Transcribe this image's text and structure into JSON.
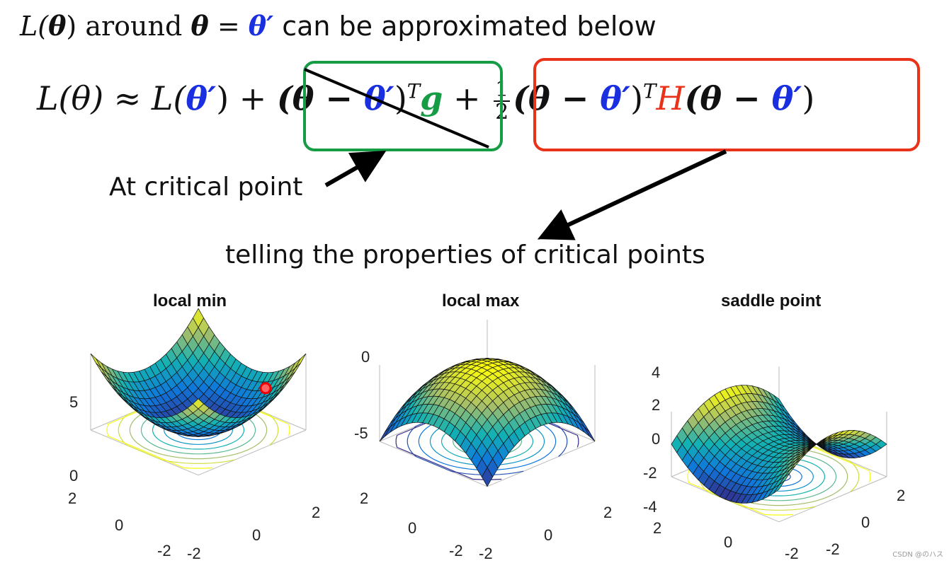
{
  "header": {
    "line": {
      "part1": "L(",
      "theta1": "θ",
      "part2": ") around ",
      "theta2": "θ",
      "eq": " = ",
      "theta_prime": "θ′",
      "part3": " can be approximated below"
    }
  },
  "formula": {
    "lhs": "L(θ) ≈ L(",
    "lhs_prime": "θ′",
    "close": ") + ",
    "term1_open": "(θ − ",
    "term1_prime": "θ′",
    "term1_close": ")",
    "term1_sup": "T",
    "term1_g": "g",
    "plus": " + ",
    "frac_num": "1",
    "frac_den": "2",
    "term2_open": "(θ − ",
    "term2_prime": "θ′",
    "term2_close": ")",
    "term2_sup": "T",
    "term2_H": "H",
    "term2_open2": "(θ − ",
    "term2_prime2": "θ′",
    "term2_close2": ")"
  },
  "annotations": {
    "critical": "At critical point",
    "properties": "telling the properties of critical points"
  },
  "plots": [
    {
      "title": "local min",
      "z_ticks": [
        "5",
        "0"
      ],
      "left_ticks": [
        "2",
        "0",
        "-2"
      ],
      "right_ticks": [
        "2",
        "0",
        "-2"
      ]
    },
    {
      "title": "local max",
      "z_ticks": [
        "0",
        "-5"
      ],
      "left_ticks": [
        "2",
        "0",
        "-2"
      ],
      "right_ticks": [
        "2",
        "0",
        "-2"
      ]
    },
    {
      "title": "saddle point",
      "z_ticks": [
        "4",
        "2",
        "0",
        "-2",
        "-4"
      ],
      "left_ticks": [
        "2",
        "0",
        "-2"
      ],
      "right_ticks": [
        "2",
        "0",
        "-2"
      ]
    }
  ],
  "colors": {
    "blue": "#1a2fe0",
    "green_box": "#169c45",
    "red_box": "#e8321a"
  },
  "watermark": "CSDN @のハス"
}
